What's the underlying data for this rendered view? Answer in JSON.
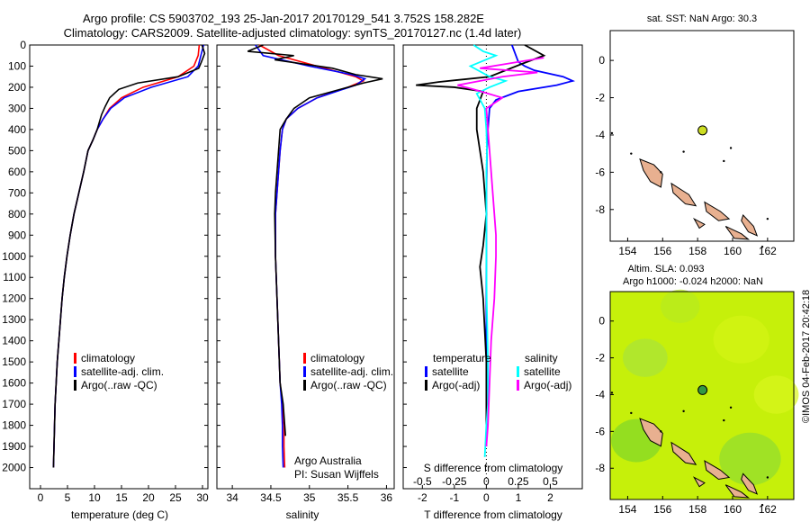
{
  "header": {
    "title_line1": "Argo profile: CS 5903702_193 25-Jan-2017 20170129_541 3.752S 158.282E",
    "title_line2": "Climatology: CARS2009. Satellite-adjusted climatology: synTS_20170127.nc (1.4d later)"
  },
  "watermark": "©IMOS 04-Feb-2017 20:42:18",
  "chart_data": [
    {
      "type": "line",
      "xlabel": "temperature (deg C)",
      "xlim": [
        -2,
        31
      ],
      "ylim": [
        0,
        2100
      ],
      "y_reversed": true,
      "xticks": [
        0,
        5,
        10,
        15,
        20,
        25,
        30
      ],
      "yticks": [
        0,
        100,
        200,
        300,
        400,
        500,
        600,
        700,
        800,
        900,
        1000,
        1100,
        1200,
        1300,
        1400,
        1500,
        1600,
        1700,
        1800,
        1900,
        2000
      ],
      "legend": [
        "climatology",
        "satellite-adj. clim.",
        "Argo(..raw -QC)"
      ],
      "legend_position": "lower-center",
      "series": [
        {
          "name": "climatology",
          "color": "#ff0000",
          "points": [
            [
              29.4,
              0
            ],
            [
              29.2,
              50
            ],
            [
              28.4,
              100
            ],
            [
              25.5,
              150
            ],
            [
              19,
              200
            ],
            [
              15,
              250
            ],
            [
              12.8,
              300
            ],
            [
              11.6,
              350
            ],
            [
              10.5,
              400
            ],
            [
              9.7,
              450
            ],
            [
              8.8,
              500
            ],
            [
              8,
              600
            ],
            [
              7.1,
              700
            ],
            [
              6.2,
              800
            ],
            [
              5.5,
              900
            ],
            [
              4.9,
              1000
            ],
            [
              4.4,
              1100
            ],
            [
              4,
              1200
            ],
            [
              3.7,
              1300
            ],
            [
              3.4,
              1400
            ],
            [
              3.1,
              1500
            ],
            [
              2.9,
              1600
            ],
            [
              2.7,
              1700
            ],
            [
              2.6,
              1800
            ],
            [
              2.5,
              1900
            ],
            [
              2.4,
              2000
            ]
          ]
        },
        {
          "name": "satellite-adj. clim.",
          "color": "#0000ff",
          "points": [
            [
              30.2,
              0
            ],
            [
              29.7,
              50
            ],
            [
              29.2,
              100
            ],
            [
              27.3,
              150
            ],
            [
              20.5,
              200
            ],
            [
              15.5,
              250
            ],
            [
              13,
              300
            ],
            [
              11.6,
              350
            ],
            [
              10.5,
              400
            ],
            [
              9.7,
              450
            ],
            [
              8.8,
              500
            ],
            [
              8,
              600
            ],
            [
              7.1,
              700
            ],
            [
              6.2,
              800
            ],
            [
              5.5,
              900
            ],
            [
              4.9,
              1000
            ],
            [
              4.4,
              1100
            ],
            [
              4,
              1200
            ],
            [
              3.7,
              1300
            ],
            [
              3.4,
              1400
            ],
            [
              3.1,
              1500
            ],
            [
              2.9,
              1600
            ],
            [
              2.7,
              1700
            ],
            [
              2.6,
              1800
            ],
            [
              2.5,
              1900
            ],
            [
              2.4,
              2000
            ]
          ]
        },
        {
          "name": "Argo(..raw -QC)",
          "color": "#000000",
          "points": [
            [
              29.9,
              0
            ],
            [
              30.4,
              40
            ],
            [
              29.8,
              80
            ],
            [
              29.3,
              110
            ],
            [
              25.5,
              150
            ],
            [
              18,
              180
            ],
            [
              14.5,
              210
            ],
            [
              12.8,
              250
            ],
            [
              12,
              290
            ],
            [
              11.3,
              330
            ],
            [
              10.5,
              400
            ],
            [
              9.7,
              450
            ],
            [
              8.8,
              500
            ],
            [
              8,
              600
            ],
            [
              7.1,
              700
            ],
            [
              6.2,
              800
            ],
            [
              5.5,
              900
            ],
            [
              4.9,
              1000
            ],
            [
              4.4,
              1100
            ],
            [
              4,
              1200
            ],
            [
              3.7,
              1300
            ],
            [
              3.4,
              1400
            ],
            [
              3.1,
              1500
            ],
            [
              2.9,
              1600
            ],
            [
              2.7,
              1700
            ],
            [
              2.6,
              1800
            ],
            [
              2.5,
              1900
            ],
            [
              2.4,
              2000
            ]
          ]
        }
      ]
    },
    {
      "type": "line",
      "xlabel": "salinity",
      "xlim": [
        33.8,
        36.1
      ],
      "ylim": [
        0,
        2100
      ],
      "y_reversed": true,
      "xticks": [
        34,
        34.5,
        35,
        35.5,
        36
      ],
      "legend": [
        "climatology",
        "satellite-adj. clim.",
        "Argo(..raw -QC)"
      ],
      "legend_position": "lower-center",
      "annotation_line1": "Argo Australia",
      "annotation_line2": "PI: Susan Wijffels",
      "series": [
        {
          "name": "climatology",
          "color": "#ff0000",
          "points": [
            [
              34.35,
              0
            ],
            [
              34.6,
              50
            ],
            [
              35.1,
              100
            ],
            [
              35.6,
              150
            ],
            [
              35.7,
              170
            ],
            [
              35.5,
              200
            ],
            [
              35.1,
              250
            ],
            [
              34.85,
              300
            ],
            [
              34.7,
              350
            ],
            [
              34.65,
              400
            ],
            [
              34.62,
              500
            ],
            [
              34.6,
              600
            ],
            [
              34.58,
              700
            ],
            [
              34.56,
              800
            ],
            [
              34.56,
              1000
            ],
            [
              34.58,
              1200
            ],
            [
              34.6,
              1400
            ],
            [
              34.62,
              1600
            ],
            [
              34.65,
              1700
            ],
            [
              34.67,
              1800
            ],
            [
              34.67,
              1900
            ],
            [
              34.68,
              2000
            ]
          ]
        },
        {
          "name": "satellite-adj. clim.",
          "color": "#0000ff",
          "points": [
            [
              34.3,
              0
            ],
            [
              34.4,
              50
            ],
            [
              35.0,
              100
            ],
            [
              35.55,
              140
            ],
            [
              35.72,
              160
            ],
            [
              35.6,
              190
            ],
            [
              35.1,
              250
            ],
            [
              34.85,
              300
            ],
            [
              34.7,
              350
            ],
            [
              34.65,
              400
            ],
            [
              34.62,
              500
            ],
            [
              34.6,
              600
            ],
            [
              34.58,
              700
            ],
            [
              34.56,
              800
            ],
            [
              34.56,
              1000
            ],
            [
              34.58,
              1200
            ],
            [
              34.6,
              1400
            ],
            [
              34.62,
              1600
            ],
            [
              34.64,
              1700
            ],
            [
              34.65,
              1800
            ],
            [
              34.65,
              1900
            ],
            [
              34.66,
              2000
            ]
          ]
        },
        {
          "name": "Argo(..raw -QC)",
          "color": "#000000",
          "points": [
            [
              34.4,
              0
            ],
            [
              34.2,
              30
            ],
            [
              34.8,
              50
            ],
            [
              34.55,
              70
            ],
            [
              35.3,
              110
            ],
            [
              35.6,
              140
            ],
            [
              35.95,
              160
            ],
            [
              35.7,
              180
            ],
            [
              35.5,
              200
            ],
            [
              35.0,
              250
            ],
            [
              34.8,
              300
            ],
            [
              34.7,
              350
            ],
            [
              34.62,
              400
            ],
            [
              34.6,
              500
            ],
            [
              34.58,
              600
            ],
            [
              34.56,
              700
            ],
            [
              34.55,
              800
            ],
            [
              34.56,
              1000
            ],
            [
              34.58,
              1200
            ],
            [
              34.6,
              1400
            ],
            [
              34.62,
              1600
            ],
            [
              34.66,
              1700
            ],
            [
              34.68,
              1800
            ],
            [
              34.69,
              1850
            ]
          ]
        }
      ]
    },
    {
      "type": "line",
      "xlabel": "T difference from climatology",
      "xlabel_top": "S difference from climatology",
      "xlim": [
        -2.6,
        3.0
      ],
      "ylim": [
        0,
        2100
      ],
      "y_reversed": true,
      "xticks_T": [
        -2,
        -1,
        0,
        1,
        2
      ],
      "xticks_S": [
        -0.5,
        -0.25,
        0,
        0.25,
        0.5
      ],
      "S_per_T_unit": 0.25,
      "legend_temperature": "temperature",
      "legend_salinity": "salinity",
      "legend": [
        "satellite",
        "Argo(-adj)",
        "satellite",
        "Argo(-adj)"
      ],
      "legend_position": "lower-center",
      "series": [
        {
          "name": "satellite",
          "quantity": "T difference",
          "color": "#0000ff",
          "x": [
            0.8,
            0.9,
            1.0,
            1.2,
            1.5,
            2.4,
            2.7,
            2.2,
            1.0,
            0.3,
            0.1,
            0.05,
            0.02,
            0,
            0,
            0
          ],
          "y": [
            0,
            40,
            80,
            100,
            120,
            150,
            170,
            190,
            220,
            260,
            300,
            400,
            500,
            700,
            1000,
            1900
          ]
        },
        {
          "name": "Argo(-adj)",
          "quantity": "T difference",
          "color": "#000000",
          "x": [
            1.2,
            1.8,
            1.1,
            0.1,
            -1.5,
            -2.2,
            -1.0,
            -0.1,
            -0.2,
            -0.3,
            -0.3,
            -0.2,
            -0.1,
            -0.05,
            0,
            -0.1,
            -0.2,
            -0.1,
            0,
            0,
            0
          ],
          "y": [
            0,
            50,
            90,
            150,
            175,
            190,
            200,
            220,
            260,
            300,
            400,
            500,
            600,
            700,
            800,
            950,
            1050,
            1200,
            1500,
            1700,
            1800
          ]
        },
        {
          "name": "satellite",
          "quantity": "S difference",
          "color": "#00ffff",
          "x": [
            -0.4,
            -0.1,
            0.3,
            -0.5,
            0.1,
            0.6,
            0.1,
            -0.3,
            -0.05,
            0,
            0.02,
            0,
            0,
            0,
            0,
            0.01,
            0.05,
            0.05,
            0,
            -0.05
          ],
          "y": [
            0,
            30,
            50,
            100,
            150,
            170,
            200,
            230,
            300,
            400,
            500,
            600,
            700,
            800,
            1000,
            1200,
            1500,
            1700,
            1800,
            1950
          ]
        },
        {
          "name": "Argo(-adj)",
          "quantity": "S difference",
          "color": "#ff00ff",
          "x": [
            1.8,
            0.6,
            -0.2,
            1.6,
            0.5,
            -0.9,
            -0.4,
            0.5,
            0,
            0.05,
            0.1,
            0.15,
            0.2,
            0.25,
            0.3,
            0.3,
            0.25,
            0.15,
            0.1,
            0.05,
            0
          ],
          "y": [
            60,
            90,
            110,
            130,
            150,
            190,
            210,
            250,
            300,
            400,
            500,
            600,
            700,
            800,
            900,
            1000,
            1200,
            1400,
            1600,
            1800,
            1900
          ]
        }
      ]
    },
    {
      "type": "map",
      "title": "sat. SST: NaN Argo: 30.3",
      "xlim": [
        153,
        163.5
      ],
      "ylim": [
        -9.7,
        1.6
      ],
      "xticks": [
        154,
        156,
        158,
        160,
        162
      ],
      "yticks": [
        0,
        -2,
        -4,
        -6,
        -8
      ],
      "marker": {
        "lon": 158.282,
        "lat": -3.752,
        "color": "#ccdd22"
      },
      "land_color": "#e8b090"
    },
    {
      "type": "map",
      "title_line1": "Altim. SLA: 0.093",
      "title_line2": "Argo h1000: -0.024 h2000: NaN",
      "xlim": [
        153,
        163.5
      ],
      "ylim": [
        -9.7,
        1.6
      ],
      "xticks": [
        154,
        156,
        158,
        160,
        162
      ],
      "yticks": [
        0,
        -2,
        -4,
        -6,
        -8
      ],
      "marker": {
        "lon": 158.282,
        "lat": -3.752,
        "color": "#339944"
      },
      "background_color": "#c6f00a",
      "land_color": "#e8b090"
    }
  ]
}
